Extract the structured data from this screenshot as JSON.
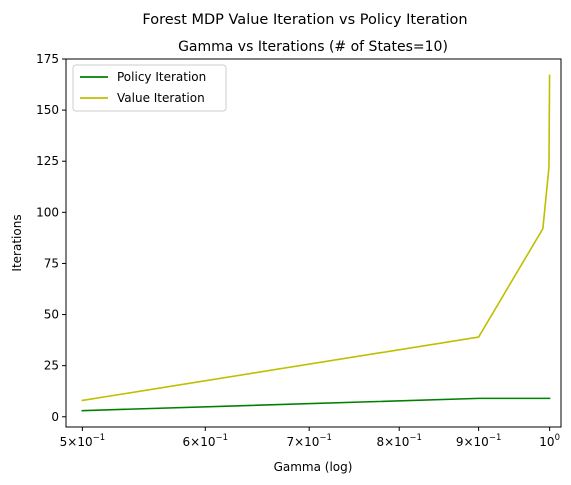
{
  "chart_data": {
    "type": "line",
    "suptitle": "Forest MDP Value Iteration vs Policy Iteration",
    "title": "Gamma vs Iterations (# of States=10)",
    "xlabel": "Gamma (log)",
    "ylabel": "Iterations",
    "xscale": "log",
    "xlim": [
      0.488,
      1.017
    ],
    "ylim": [
      -5,
      175
    ],
    "yticks": [
      0,
      25,
      50,
      75,
      100,
      125,
      150,
      175
    ],
    "xticks": [
      {
        "value": 0.5,
        "base": "5",
        "exp": "−1"
      },
      {
        "value": 0.6,
        "base": "6",
        "exp": "−1"
      },
      {
        "value": 0.7,
        "base": "7",
        "exp": "−1"
      },
      {
        "value": 0.8,
        "base": "8",
        "exp": "−1"
      },
      {
        "value": 0.9,
        "base": "9",
        "exp": "−1"
      },
      {
        "value": 1.0,
        "base": "10",
        "exp": "0"
      }
    ],
    "legend_position": "upper-left",
    "grid": false,
    "series": [
      {
        "name": "Policy Iteration",
        "color": "#008000",
        "x": [
          0.5,
          0.9,
          0.99,
          0.999,
          0.9999
        ],
        "y": [
          3,
          9,
          9,
          9,
          9
        ]
      },
      {
        "name": "Value Iteration",
        "color": "#bfbf00",
        "x": [
          0.5,
          0.9,
          0.99,
          0.999,
          0.9999
        ],
        "y": [
          8,
          39,
          92,
          122,
          167
        ]
      }
    ]
  }
}
